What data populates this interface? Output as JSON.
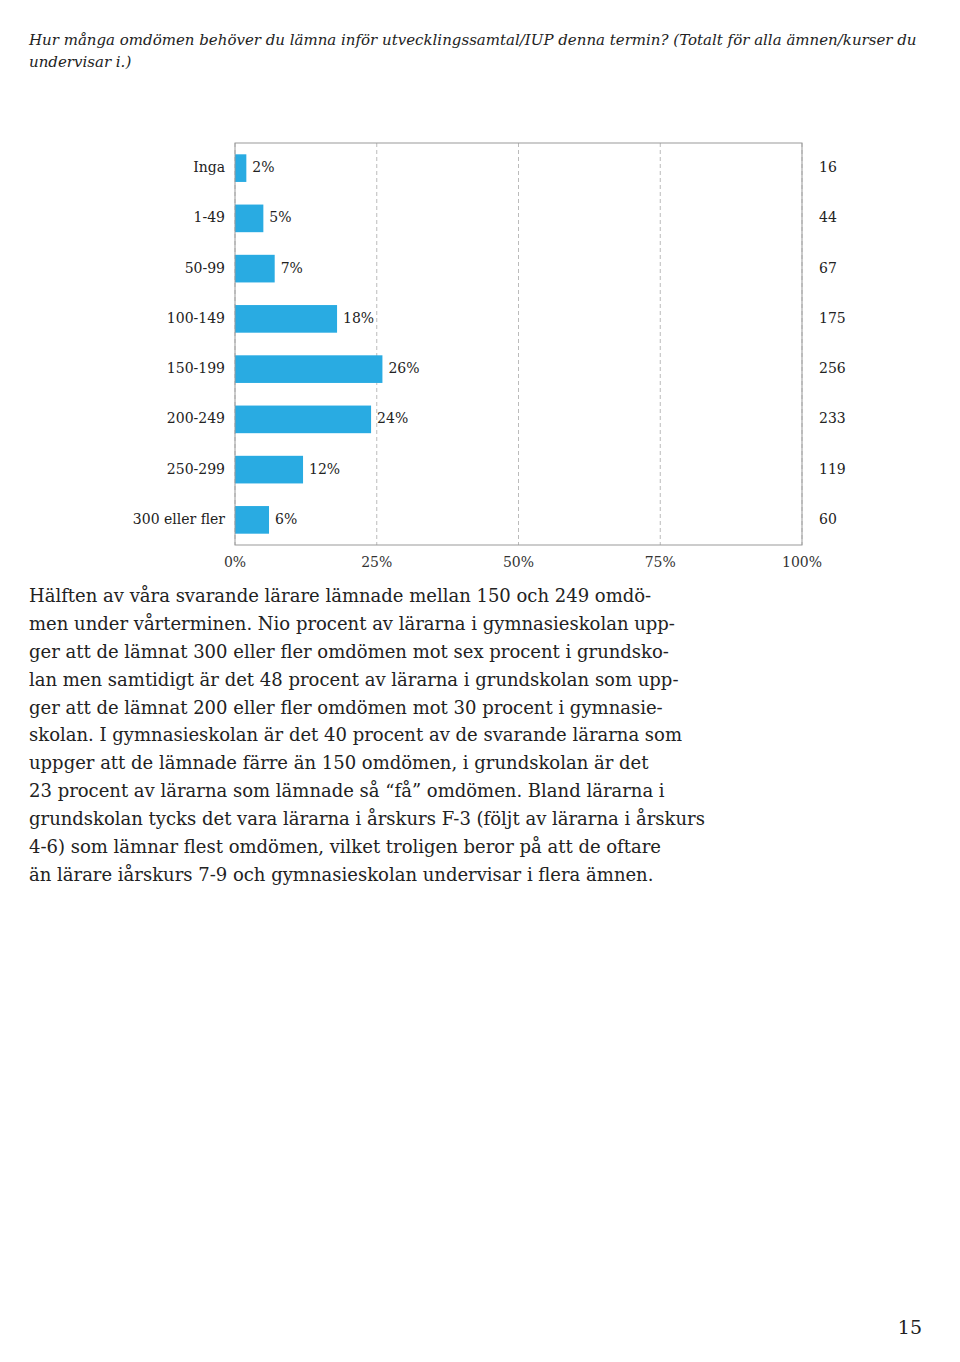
{
  "chart_data": {
    "type": "bar",
    "orientation": "horizontal",
    "title": "Hur många omdömen behöver du lämna inför utvecklingssamtal/IUP denna termin? (Totalt för alla ämnen/kurser du undervisar i.)",
    "categories": [
      "Inga",
      "1-49",
      "50-99",
      "100-149",
      "150-199",
      "200-249",
      "250-299",
      "300 eller fler"
    ],
    "values": [
      2,
      5,
      7,
      18,
      26,
      24,
      12,
      6
    ],
    "value_labels": [
      "2%",
      "5%",
      "7%",
      "18%",
      "26%",
      "24%",
      "12%",
      "6%"
    ],
    "data_labels": true,
    "counts": [
      16,
      44,
      67,
      175,
      256,
      233,
      119,
      60
    ],
    "color": "#29ABE2",
    "xlim": [
      0,
      100
    ],
    "xticks": [
      {
        "value": 0,
        "label": "0%"
      },
      {
        "value": 25,
        "label": "25%"
      },
      {
        "value": 50,
        "label": "50%"
      },
      {
        "value": 75,
        "label": "75%"
      },
      {
        "value": 100,
        "label": "100%"
      }
    ],
    "grid": true,
    "annotations": [
      "Hälften av våra svarande lärare lämnade mellan 150 och 249 omdö-\nmen under vårterminen. Nio procent av lärarna i gymnasieskolan upp-\nger att de lämnat 300 eller fler omdömen mot sex procent i grundsko-\nlan men samtidigt är det 48 procent av lärarna i grundskolan som upp-\nger att de lämnat 200 eller fler omdömen mot 30 procent i gymnasie-\nskolan. I gymnasieskolan är det 40 procent av de svarande lärarna som\nuppger att de lämnade färre än 150 omdömen, i grundskolan är det\n23 procent av lärarna som lämnade så “få” omdömen. Bland lärarna i\ngrundskolan tycks det vara lärarna i årskurs F-3 (följt av lärarna i årskurs\n4-6) som lämnar flest omdömen, vilket troligen beror på att de oftare\nän lärare iårskurs 7-9 och gymnasieskolan undervisar i flera ämnen.",
      "15"
    ]
  }
}
